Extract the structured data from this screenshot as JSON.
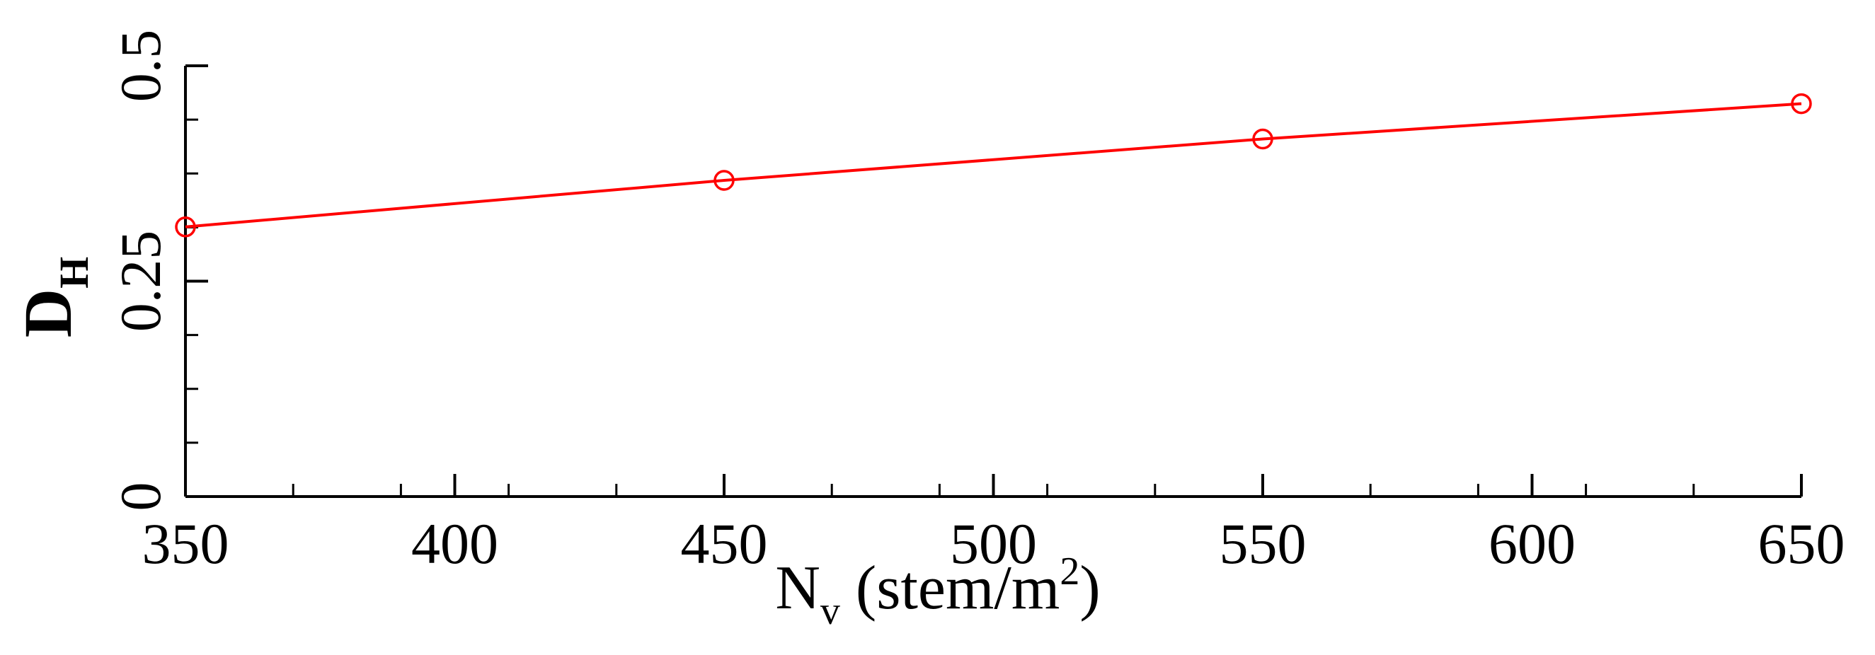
{
  "chart_data": {
    "type": "line",
    "title": "",
    "xlabel": {
      "base": "N",
      "sub": "v",
      "rest": " (stem/m",
      "sup": "2",
      "close": ")"
    },
    "ylabel": {
      "base": "D",
      "sub": "H"
    },
    "xlim": [
      350,
      650
    ],
    "ylim": [
      0,
      0.5
    ],
    "x_ticks": [
      "350",
      "400",
      "450",
      "500",
      "550",
      "600",
      "650"
    ],
    "y_ticks": [
      "0",
      "0.25",
      "0.5"
    ],
    "grid": false,
    "legend": "none",
    "series": [
      {
        "color": "#ff0000",
        "marker": "open-circle",
        "x": [
          350,
          450,
          550,
          650
        ],
        "y": [
          0.313,
          0.367,
          0.415,
          0.456
        ]
      }
    ]
  }
}
